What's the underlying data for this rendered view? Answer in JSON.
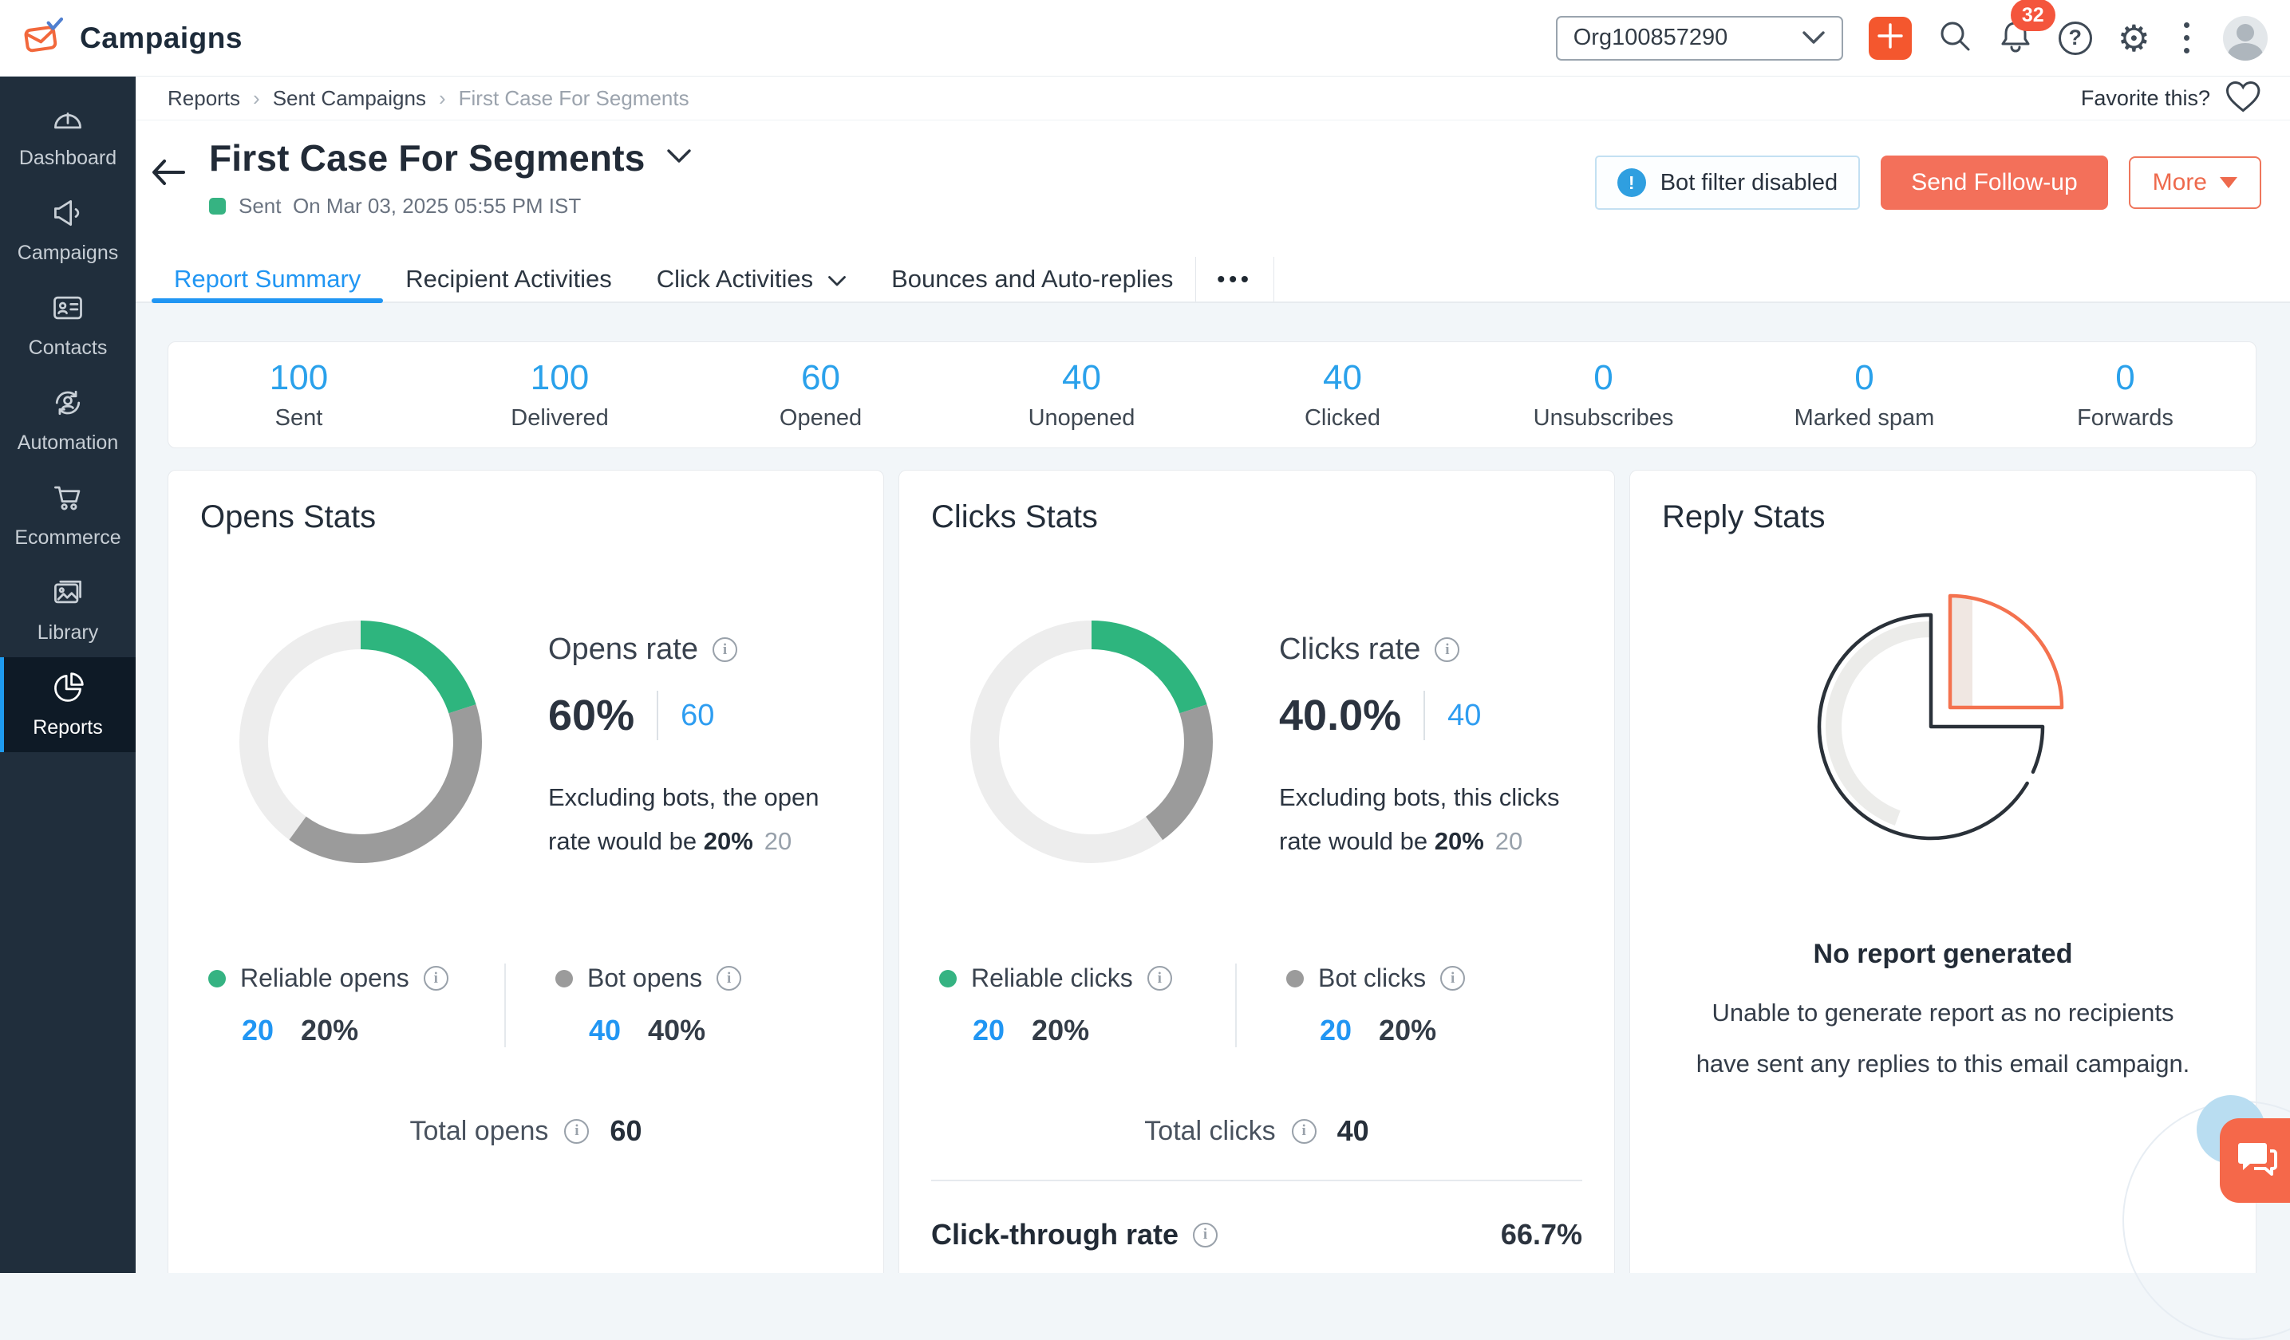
{
  "app": {
    "name": "Campaigns"
  },
  "header": {
    "org": "Org100857290",
    "notifications_badge": "32"
  },
  "sidebar": {
    "items": [
      {
        "label": "Dashboard"
      },
      {
        "label": "Campaigns"
      },
      {
        "label": "Contacts"
      },
      {
        "label": "Automation"
      },
      {
        "label": "Ecommerce"
      },
      {
        "label": "Library"
      },
      {
        "label": "Reports"
      }
    ]
  },
  "breadcrumb": {
    "parts": [
      "Reports",
      "Sent Campaigns",
      "First Case For Segments"
    ]
  },
  "favorite": {
    "label": "Favorite this?"
  },
  "campaign": {
    "title": "First Case For Segments",
    "status_label": "Sent",
    "sent_on": "On Mar 03, 2025 05:55 PM IST",
    "bot_filter": "Bot filter disabled",
    "send_followup": "Send Follow-up",
    "more": "More"
  },
  "tabs": {
    "items": [
      {
        "label": "Report Summary",
        "active": true
      },
      {
        "label": "Recipient Activities",
        "active": false
      },
      {
        "label": "Click Activities",
        "active": false
      },
      {
        "label": "Bounces and Auto-replies",
        "active": false
      }
    ],
    "more": "•••"
  },
  "summary": {
    "stats": [
      {
        "value": "100",
        "label": "Sent"
      },
      {
        "value": "100",
        "label": "Delivered"
      },
      {
        "value": "60",
        "label": "Opened"
      },
      {
        "value": "40",
        "label": "Unopened"
      },
      {
        "value": "40",
        "label": "Clicked"
      },
      {
        "value": "0",
        "label": "Unsubscribes"
      },
      {
        "value": "0",
        "label": "Marked spam"
      },
      {
        "value": "0",
        "label": "Forwards"
      }
    ]
  },
  "opens": {
    "title": "Opens Stats",
    "rate_label": "Opens rate",
    "rate": "60%",
    "rate_count": "60",
    "note_prefix": "Excluding bots, the open rate would be ",
    "note_bold": "20%",
    "note_count": "20",
    "legend": [
      {
        "label": "Reliable opens",
        "value": "20",
        "pct": "20%",
        "color": "#35b382"
      },
      {
        "label": "Bot opens",
        "value": "40",
        "pct": "40%",
        "color": "#9b9b9b"
      }
    ],
    "total_label": "Total opens",
    "total_value": "60",
    "donut": {
      "segments": [
        20,
        40
      ],
      "colors": [
        "#2eb57e",
        "#9b9b9b"
      ],
      "track": "#ededed"
    }
  },
  "clicks": {
    "title": "Clicks Stats",
    "rate_label": "Clicks rate",
    "rate": "40.0%",
    "rate_count": "40",
    "note_prefix": "Excluding bots, this clicks rate would be ",
    "note_bold": "20%",
    "note_count": "20",
    "legend": [
      {
        "label": "Reliable clicks",
        "value": "20",
        "pct": "20%",
        "color": "#35b382"
      },
      {
        "label": "Bot clicks",
        "value": "20",
        "pct": "20%",
        "color": "#9b9b9b"
      }
    ],
    "total_label": "Total clicks",
    "total_value": "40",
    "ctr_label": "Click-through rate",
    "ctr_value": "66.7%",
    "donut": {
      "segments": [
        20,
        20
      ],
      "colors": [
        "#2eb57e",
        "#9b9b9b"
      ],
      "track": "#ededed"
    }
  },
  "reply": {
    "title": "Reply Stats",
    "heading": "No report generated",
    "message": "Unable to generate report as no recipients have sent any replies to this email campaign."
  },
  "colors": {
    "accent_blue": "#2196f3",
    "green": "#35b382",
    "orange": "#f3705a",
    "sidebar_bg": "#202e3c"
  },
  "chart_data": [
    {
      "type": "pie",
      "title": "Opens Stats donut",
      "series": [
        {
          "name": "Reliable opens",
          "value": 20
        },
        {
          "name": "Bot opens",
          "value": 40
        },
        {
          "name": "Remainder",
          "value": 40
        }
      ],
      "unit": "percent of delivered"
    },
    {
      "type": "pie",
      "title": "Clicks Stats donut",
      "series": [
        {
          "name": "Reliable clicks",
          "value": 20
        },
        {
          "name": "Bot clicks",
          "value": 20
        },
        {
          "name": "Remainder",
          "value": 60
        }
      ],
      "unit": "percent of delivered"
    }
  ]
}
